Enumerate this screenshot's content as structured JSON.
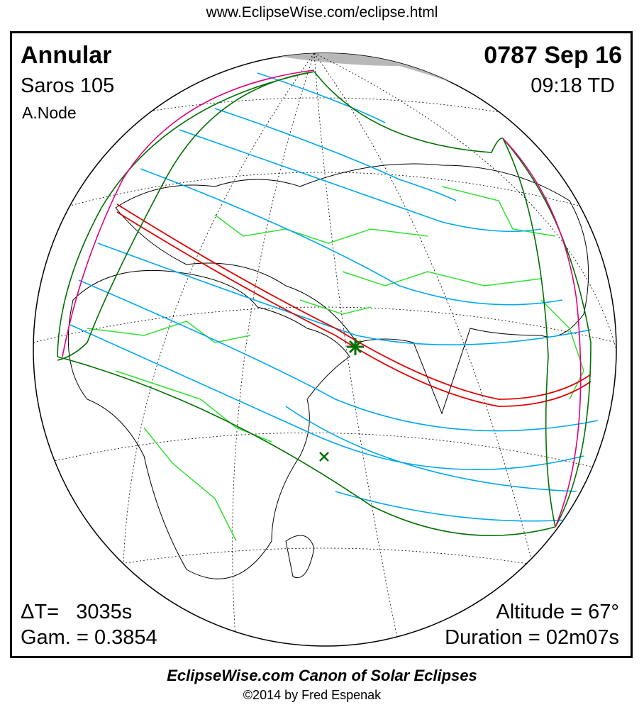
{
  "header": {
    "url": "www.EclipseWise.com/eclipse.html"
  },
  "eclipse": {
    "type": "Annular",
    "date": "0787 Sep 16",
    "saros": "Saros 105",
    "time": "09:18 TD",
    "node": "A.Node",
    "delta_t": "ΔT=   3035s",
    "gamma": "Gam. = 0.3854",
    "altitude": "Altitude = 67°",
    "duration": "Duration = 02m07s"
  },
  "map": {
    "colors": {
      "central_path": "#e00000",
      "penumbral_lines": "#00a8f0",
      "limits": "#007000",
      "rise_set": "#e0007a",
      "borders": "#30e030",
      "night": "#b0b0b0"
    },
    "markers": [
      "greatest-eclipse-star",
      "subsolar-x"
    ]
  },
  "footer": {
    "title": "EclipseWise.com Canon of Solar Eclipses",
    "copyright": "©2014 by Fred Espenak"
  }
}
